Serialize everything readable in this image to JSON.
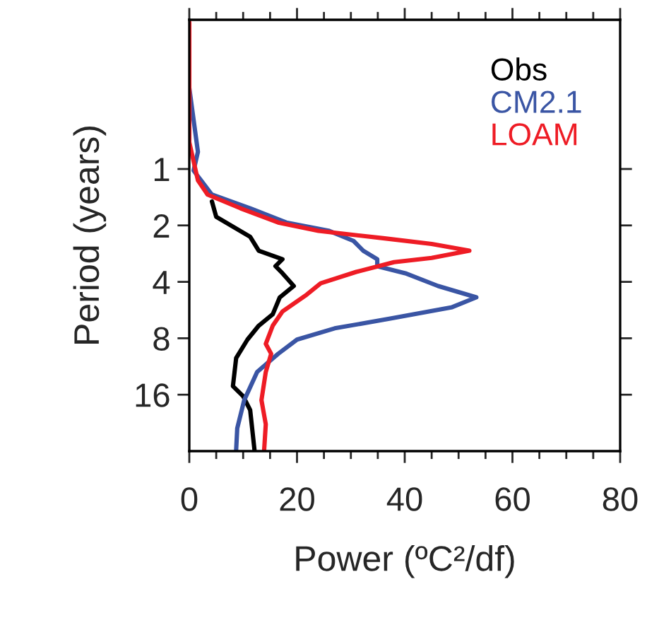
{
  "chart_data": {
    "type": "line",
    "xlabel": "Power (ºC²/df)",
    "ylabel": "Period (years)",
    "log": "y",
    "xlim": [
      0,
      80
    ],
    "xticks": [
      0,
      {
        "value": 5,
        "label": null
      },
      {
        "value": 10,
        "label": null
      },
      {
        "value": 15,
        "label": null
      },
      20,
      {
        "value": 25,
        "label": null
      },
      {
        "value": 30,
        "label": null
      },
      {
        "value": 35,
        "label": null
      },
      40,
      {
        "value": 45,
        "label": null
      },
      {
        "value": 50,
        "label": null
      },
      {
        "value": 55,
        "label": null
      },
      60,
      {
        "value": 65,
        "label": null
      },
      {
        "value": 70,
        "label": null
      },
      {
        "value": 75,
        "label": null
      },
      80
    ],
    "ylim": [
      32,
      0.16
    ],
    "yticks": [
      1,
      2,
      4,
      8,
      16
    ],
    "grid": false,
    "legend": "top right",
    "marker": "none",
    "line_style": "solid",
    "series": [
      {
        "name": "Obs",
        "color": "#000000",
        "x": [
          4.2,
          5.0,
          11.3,
          12.9,
          17.3,
          16.0,
          17.3,
          19.4,
          16.8,
          15.5,
          12.9,
          10.8,
          8.7,
          8.1,
          10.0,
          11.3,
          12.1
        ],
        "values": [
          1.49,
          1.8,
          2.3,
          2.73,
          3.03,
          3.3,
          3.6,
          4.21,
          4.84,
          5.95,
          6.85,
          8.13,
          10.2,
          14.4,
          16.3,
          19.3,
          31.5
        ]
      },
      {
        "name": "CM2.1",
        "color": "#3a55a4",
        "x": [
          0,
          1.6,
          0.8,
          4.2,
          11.3,
          18,
          26,
          30.5,
          32.3,
          34.9,
          34.9,
          40.1,
          46.2,
          53.3,
          48.8,
          37.5,
          27,
          20,
          16.5,
          12.6,
          10.2,
          8.9,
          8.7
        ],
        "values": [
          0.37,
          0.81,
          1.02,
          1.37,
          1.62,
          1.93,
          2.14,
          2.42,
          2.73,
          3.03,
          3.3,
          3.6,
          4.21,
          4.84,
          5.46,
          6.27,
          7.08,
          8.13,
          9.68,
          12.1,
          17.1,
          24.2,
          31.5
        ]
      },
      {
        "name": "LOAM",
        "color": "#ee1c25",
        "x": [
          0,
          0,
          1.6,
          3.4,
          9.5,
          16.5,
          24,
          36,
          45,
          52,
          45,
          38,
          31,
          24.4,
          21.8,
          17.3,
          15.5,
          14.2,
          15.2,
          14.2,
          13.4,
          14.2,
          13.9
        ],
        "values": [
          0.165,
          0.72,
          1.15,
          1.37,
          1.62,
          1.93,
          2.14,
          2.34,
          2.51,
          2.73,
          2.98,
          3.14,
          3.54,
          4.07,
          4.68,
          5.76,
          6.85,
          8.57,
          9.68,
          12.1,
          17.1,
          23.0,
          31.5
        ]
      }
    ]
  }
}
